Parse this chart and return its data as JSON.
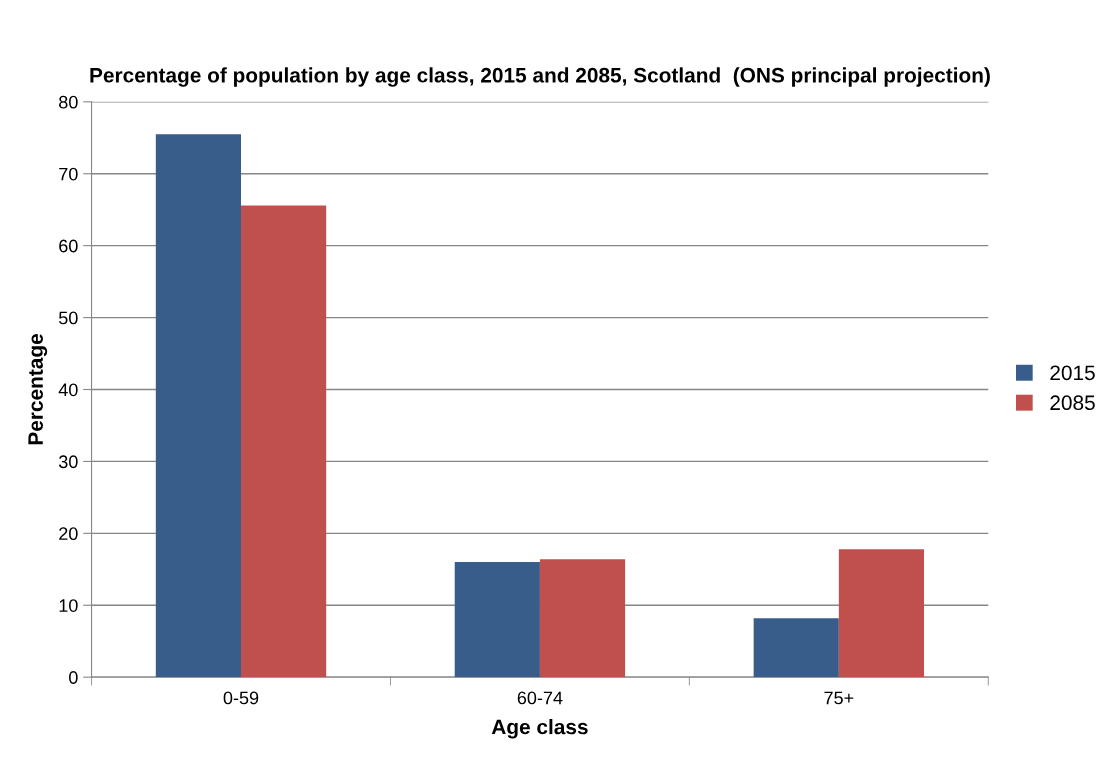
{
  "chart_data": {
    "type": "bar",
    "title": "Percentage of population by age class, 2015 and 2085, Scotland  (ONS principal projection)",
    "xlabel": "Age class",
    "ylabel": "Percentage",
    "categories": [
      "0-59",
      "60-74",
      "75+"
    ],
    "series": [
      {
        "name": "2015",
        "color": "#385d8a",
        "values": [
          75.5,
          16.0,
          8.2
        ]
      },
      {
        "name": "2085",
        "color": "#c0504d",
        "values": [
          65.6,
          16.4,
          17.8
        ]
      }
    ],
    "ylim": [
      0,
      80
    ],
    "yticks": [
      0,
      10,
      20,
      30,
      40,
      50,
      60,
      70,
      80
    ],
    "grid": "y",
    "legend": "right"
  }
}
